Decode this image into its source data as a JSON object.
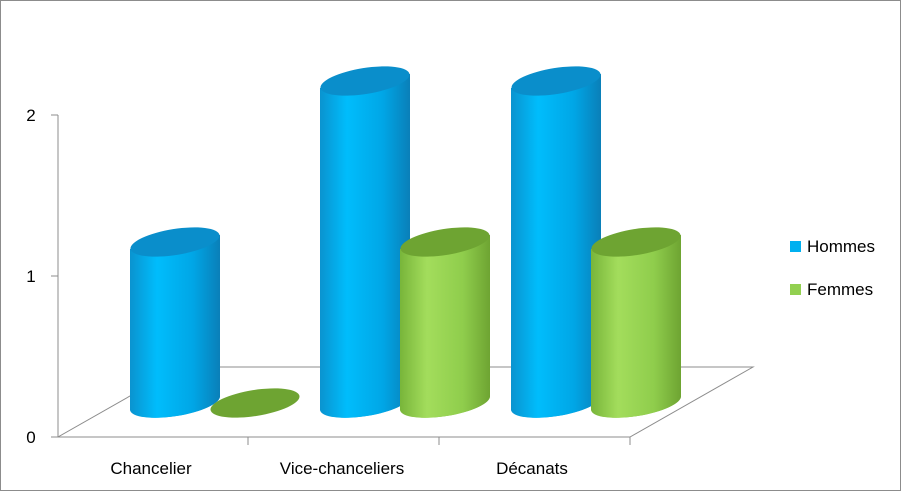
{
  "chart_data": {
    "type": "bar",
    "variant": "3d-cylinder",
    "categories": [
      "Chancelier",
      "Vice-chanceliers",
      "Décanats"
    ],
    "series": [
      {
        "name": "Hommes",
        "values": [
          1,
          2,
          2
        ]
      },
      {
        "name": "Femmes",
        "values": [
          0,
          1,
          1
        ]
      }
    ],
    "yticks": [
      "0",
      "1",
      "2"
    ],
    "ylim": [
      0,
      2
    ],
    "legend_position": "right",
    "grid": false,
    "colors": {
      "Hommes": "#00b0f0",
      "Femmes": "#92d050"
    }
  }
}
